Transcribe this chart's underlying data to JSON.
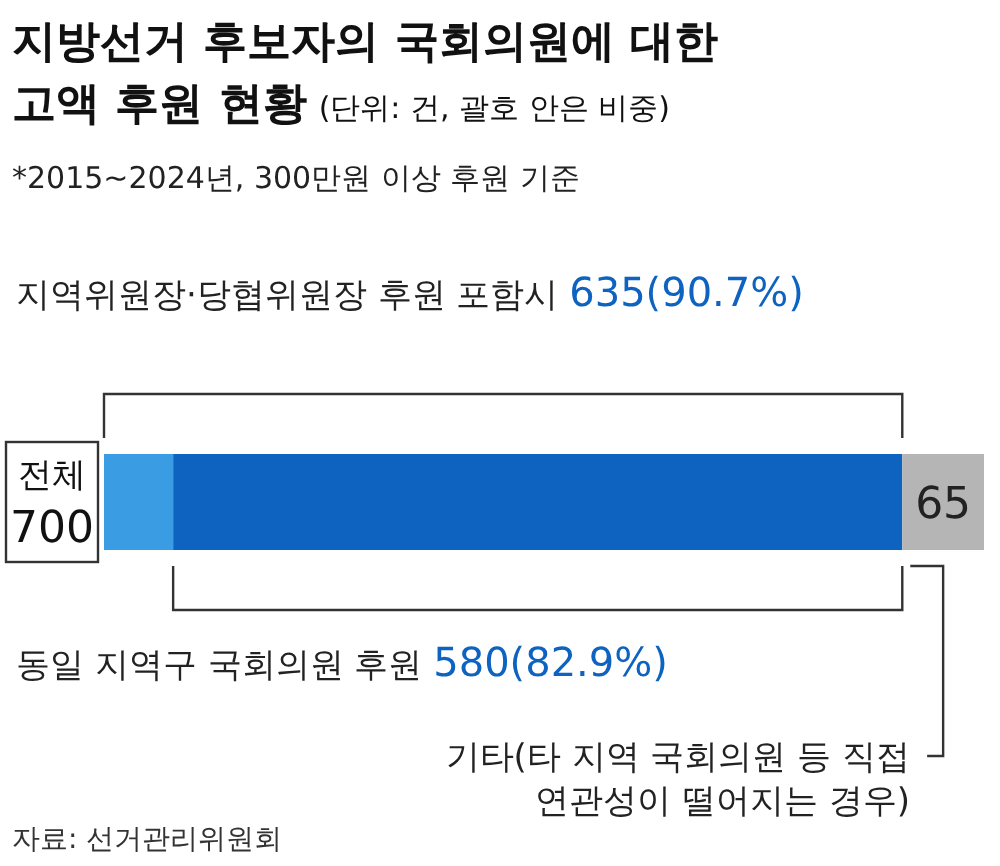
{
  "chart_data": {
    "type": "bar",
    "orientation": "horizontal",
    "stacked": true,
    "title": "지방선거 후보자의 국회의원에 대한 고액 후원 현황",
    "categories": [
      "전체"
    ],
    "totals": [
      "700"
    ],
    "series": [
      {
        "color": "#3a9de3",
        "values": [
          55
        ],
        "value_labels": [
          null
        ]
      },
      {
        "color": "#0e63c0",
        "values": [
          580
        ],
        "value_labels": [
          null
        ]
      },
      {
        "color": "#b5b5b5",
        "values": [
          65
        ],
        "value_labels": [
          "65"
        ]
      }
    ],
    "xlim": [
      0,
      700
    ],
    "annotations": [
      "(단위: 건, 괄호 안은 비중)",
      "*2015~2024년, 300만원 이상 후원 기준",
      "지역위원장·당협위원장 후원 포함시 635(90.7%)",
      "동일 지역구 국회의원 후원 580(82.9%)",
      "기타(타 지역 국회의원 등 직접 연관성이 떨어지는 경우)",
      "자료: 선거관리위원회"
    ]
  }
}
